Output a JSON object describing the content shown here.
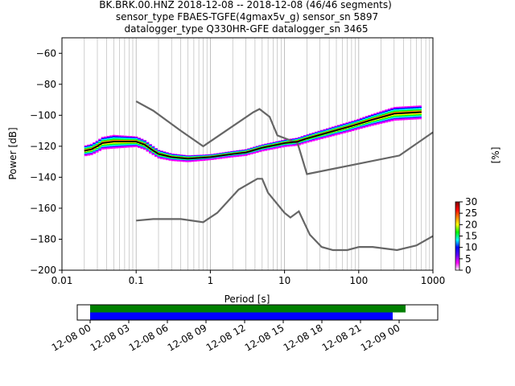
{
  "chart_data": [
    {
      "type": "line",
      "title_lines": [
        "BK.BRK.00.HNZ   2018-12-08 -- 2018-12-08  (46/46 segments)",
        "sensor_type FBAES-TGFE(4gmax5v_g) sensor_sn 5897",
        "datalogger_type Q330HR-GFE datalogger_sn 3465"
      ],
      "xlabel": "Period [s]",
      "ylabel": "Power [dB]",
      "x_scale": "log",
      "xlim": [
        0.01,
        1000
      ],
      "ylim": [
        -200,
        -50
      ],
      "x_ticks": [
        {
          "value": 0.01,
          "label": "0.01"
        },
        {
          "value": 0.1,
          "label": "0.1"
        },
        {
          "value": 1,
          "label": "1"
        },
        {
          "value": 10,
          "label": "10"
        },
        {
          "value": 100,
          "label": "100"
        },
        {
          "value": 1000,
          "label": "1000"
        }
      ],
      "y_ticks": [
        {
          "value": -200,
          "label": "−200"
        },
        {
          "value": -180,
          "label": "−180"
        },
        {
          "value": -160,
          "label": "−160"
        },
        {
          "value": -140,
          "label": "−140"
        },
        {
          "value": -120,
          "label": "−120"
        },
        {
          "value": -100,
          "label": "−100"
        },
        {
          "value": -80,
          "label": "−80"
        },
        {
          "value": -60,
          "label": "−60"
        }
      ],
      "grid": "vertical, major and minor",
      "colors": {
        "noise_models": "#666666",
        "mean_curve": "#000000"
      },
      "noise_model_high": [
        [
          0.1,
          -91
        ],
        [
          0.17,
          -97
        ],
        [
          0.4,
          -110
        ],
        [
          0.8,
          -120
        ],
        [
          3.8,
          -98
        ],
        [
          4.6,
          -96
        ],
        [
          6.3,
          -101
        ],
        [
          8,
          -113
        ],
        [
          15,
          -118
        ],
        [
          20,
          -138
        ],
        [
          354,
          -126
        ],
        [
          1000,
          -111
        ]
      ],
      "noise_model_low": [
        [
          0.1,
          -168
        ],
        [
          0.17,
          -167
        ],
        [
          0.4,
          -167
        ],
        [
          0.8,
          -169
        ],
        [
          1.24,
          -163
        ],
        [
          2.4,
          -148
        ],
        [
          4.3,
          -141
        ],
        [
          5,
          -141
        ],
        [
          6,
          -150
        ],
        [
          10,
          -163
        ],
        [
          12,
          -166
        ],
        [
          15.6,
          -162
        ],
        [
          21.9,
          -177
        ],
        [
          31.6,
          -185
        ],
        [
          45,
          -187
        ],
        [
          70,
          -187
        ],
        [
          101,
          -185
        ],
        [
          154,
          -185
        ],
        [
          328,
          -187
        ],
        [
          600,
          -184
        ],
        [
          1000,
          -178
        ]
      ],
      "mean_curve": [
        [
          0.02,
          -123
        ],
        [
          0.025,
          -122
        ],
        [
          0.03,
          -120
        ],
        [
          0.035,
          -118
        ],
        [
          0.05,
          -117
        ],
        [
          0.07,
          -117
        ],
        [
          0.1,
          -117
        ],
        [
          0.13,
          -119
        ],
        [
          0.16,
          -122
        ],
        [
          0.2,
          -125
        ],
        [
          0.3,
          -127
        ],
        [
          0.5,
          -128
        ],
        [
          1,
          -127
        ],
        [
          2,
          -125
        ],
        [
          3,
          -124
        ],
        [
          5,
          -121
        ],
        [
          8,
          -119
        ],
        [
          10,
          -118
        ],
        [
          15,
          -117
        ],
        [
          20,
          -115
        ],
        [
          40,
          -111
        ],
        [
          80,
          -107
        ],
        [
          150,
          -103
        ],
        [
          300,
          -99
        ],
        [
          700,
          -98
        ]
      ],
      "density_band_halfwidth": [
        [
          0.02,
          3
        ],
        [
          0.05,
          4
        ],
        [
          0.1,
          3
        ],
        [
          0.3,
          2
        ],
        [
          1,
          1.5
        ],
        [
          10,
          2
        ],
        [
          100,
          3
        ],
        [
          300,
          4
        ],
        [
          700,
          4
        ]
      ]
    },
    {
      "type": "heatmap",
      "colorbar_label": "[%]",
      "range": [
        0,
        30
      ],
      "ticks": [
        {
          "value": 0,
          "label": "0"
        },
        {
          "value": 5,
          "label": "5"
        },
        {
          "value": 10,
          "label": "10"
        },
        {
          "value": 15,
          "label": "15"
        },
        {
          "value": 20,
          "label": "20"
        },
        {
          "value": 25,
          "label": "25"
        },
        {
          "value": 30,
          "label": "30"
        }
      ],
      "colormap": [
        "#ffffff",
        "#ff00ff",
        "#5b00ff",
        "#0000ff",
        "#00ffff",
        "#00ff00",
        "#ffff00",
        "#ff8000",
        "#ff0000",
        "#800000"
      ]
    },
    {
      "type": "timeline",
      "x_range_hours": [
        -1,
        27
      ],
      "x_ticks": [
        {
          "hours": 0,
          "label": "12-08 00"
        },
        {
          "hours": 3,
          "label": "12-08 03"
        },
        {
          "hours": 6,
          "label": "12-08 06"
        },
        {
          "hours": 9,
          "label": "12-08 09"
        },
        {
          "hours": 12,
          "label": "12-08 12"
        },
        {
          "hours": 15,
          "label": "12-08 15"
        },
        {
          "hours": 18,
          "label": "12-08 18"
        },
        {
          "hours": 21,
          "label": "12-08 21"
        },
        {
          "hours": 24,
          "label": "12-09 00"
        }
      ],
      "bars": [
        {
          "color": "#008000",
          "start_hours": 0,
          "end_hours": 24.5
        },
        {
          "color": "#0000ff",
          "start_hours": 0,
          "end_hours": 23.5
        }
      ]
    }
  ]
}
